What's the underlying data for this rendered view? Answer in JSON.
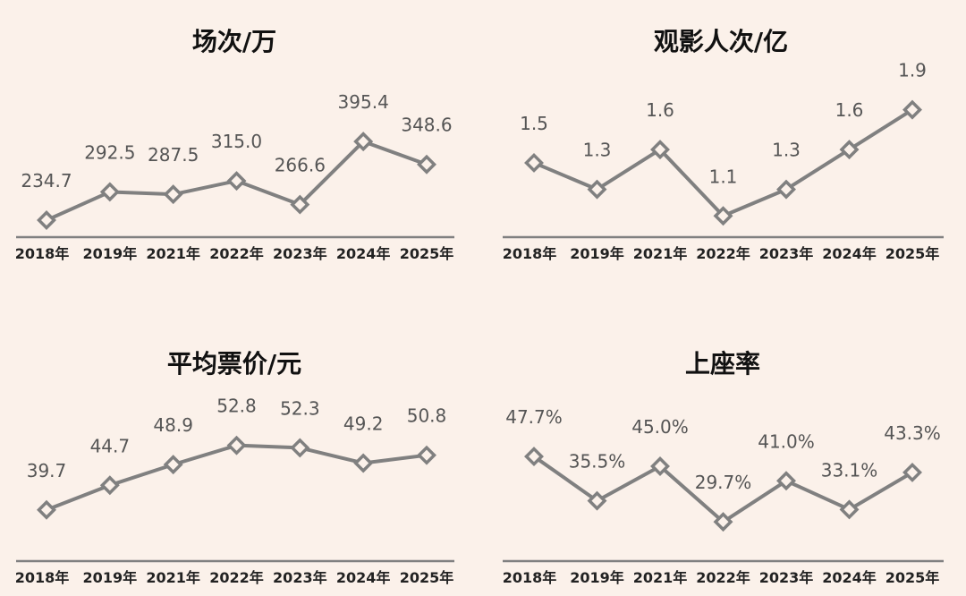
{
  "colors": {
    "background": "#fbf1ea",
    "line": "#808080",
    "marker_fill": "#fbf1ea",
    "axis": "#808080"
  },
  "chart_data": [
    {
      "type": "line",
      "title": "场次/万",
      "categories": [
        "2018年",
        "2019年",
        "2021年",
        "2022年",
        "2023年",
        "2024年",
        "2025年"
      ],
      "values": [
        234.7,
        292.5,
        287.5,
        315.0,
        266.6,
        395.4,
        348.6
      ],
      "labels": [
        "234.7",
        "292.5",
        "287.5",
        "315.0",
        "266.6",
        "395.4",
        "348.6"
      ],
      "ylim": [
        200,
        520
      ],
      "marker": "diamond",
      "grid": false
    },
    {
      "type": "line",
      "title": "观影人次/亿",
      "categories": [
        "2018年",
        "2019年",
        "2021年",
        "2022年",
        "2023年",
        "2024年",
        "2025年"
      ],
      "values": [
        1.5,
        1.3,
        1.6,
        1.1,
        1.3,
        1.6,
        1.9
      ],
      "labels": [
        "1.5",
        "1.3",
        "1.6",
        "1.1",
        "1.3",
        "1.6",
        "1.9"
      ],
      "ylim": [
        0.94,
        2.12
      ],
      "marker": "diamond",
      "grid": false
    },
    {
      "type": "line",
      "title": "平均票价/元",
      "categories": [
        "2018年",
        "2019年",
        "2021年",
        "2022年",
        "2023年",
        "2024年",
        "2025年"
      ],
      "values": [
        39.7,
        44.7,
        48.9,
        52.8,
        52.3,
        49.2,
        50.8
      ],
      "labels": [
        "39.7",
        "44.7",
        "48.9",
        "52.8",
        "52.3",
        "49.2",
        "50.8"
      ],
      "ylim": [
        29.3,
        61.1
      ],
      "marker": "diamond",
      "grid": false
    },
    {
      "type": "line",
      "title": "上座率",
      "categories": [
        "2018年",
        "2019年",
        "2021年",
        "2022年",
        "2023年",
        "2024年",
        "2025年"
      ],
      "values": [
        47.7,
        35.5,
        45.0,
        29.7,
        41.0,
        33.1,
        43.3
      ],
      "labels": [
        "47.7%",
        "35.5%",
        "45.0%",
        "29.7%",
        "41.0%",
        "33.1%",
        "43.3%"
      ],
      "ylim": [
        18.9,
        62
      ],
      "marker": "diamond",
      "grid": false
    }
  ]
}
